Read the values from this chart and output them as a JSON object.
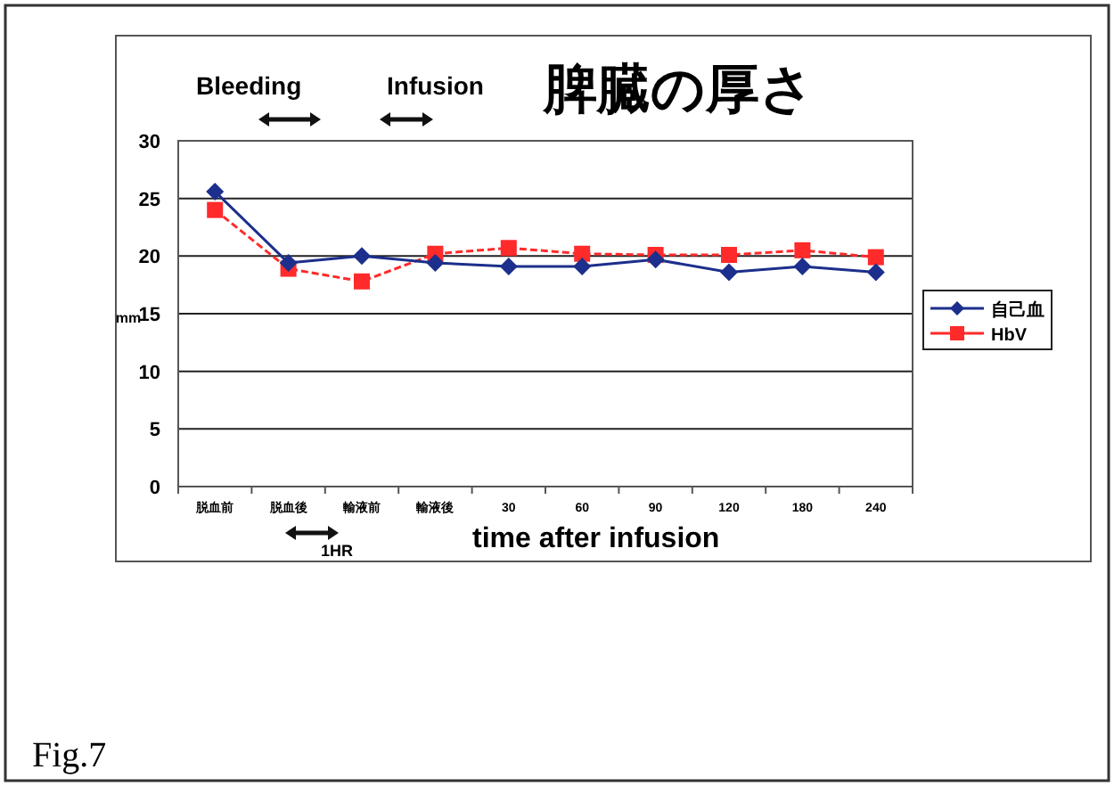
{
  "chart_data": {
    "type": "line",
    "title": "脾臓の厚さ",
    "xlabel": "time after infusion",
    "ylabel": "mm",
    "categories": [
      "脱血前",
      "脱血後",
      "輸液前",
      "輸液後",
      "30",
      "60",
      "90",
      "120",
      "180",
      "240"
    ],
    "series": [
      {
        "name": "自己血",
        "color": "#1c2f8c",
        "marker": "diamond",
        "line_style": "solid",
        "values": [
          25.6,
          19.4,
          20.0,
          19.4,
          19.1,
          19.1,
          19.7,
          18.6,
          19.1,
          18.6
        ]
      },
      {
        "name": "HbV",
        "color": "#ff2a2a",
        "marker": "square",
        "line_style": "dashed",
        "values": [
          24.0,
          18.9,
          17.8,
          20.2,
          20.7,
          20.2,
          20.1,
          20.1,
          20.5,
          19.9
        ]
      }
    ],
    "ylim": [
      0,
      30
    ],
    "yticks": [
      0,
      5,
      10,
      15,
      20,
      25,
      30
    ],
    "grid": "y",
    "legend": "right",
    "annotations": [
      "Bleeding",
      "Infusion",
      "1HR",
      "Fig.7"
    ]
  }
}
